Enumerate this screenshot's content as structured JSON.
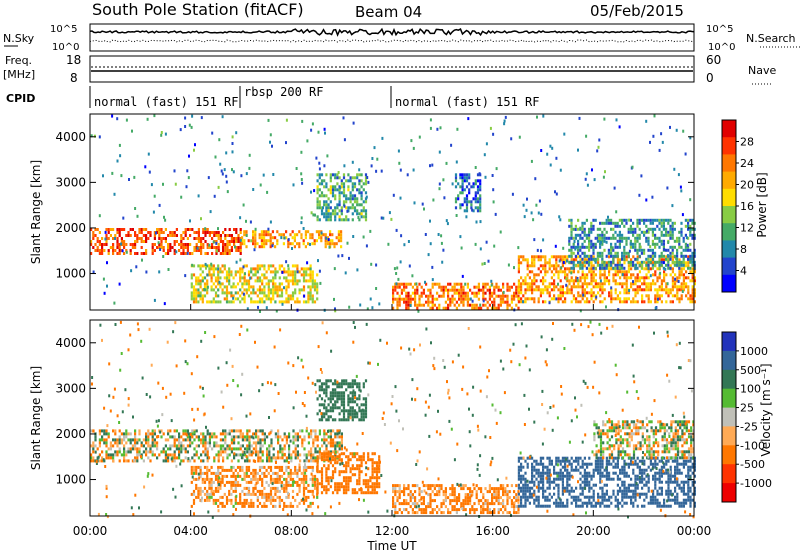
{
  "header": {
    "title": "South Pole Station (fitACF)",
    "beam": "Beam 04",
    "date": "05/Feb/2015"
  },
  "top_panels": {
    "nsky_label": "N.Sky",
    "nsky_tick_top": "10^5",
    "nsky_tick_bottom": "10^0",
    "nsearch_label": "N.Search",
    "freq_label_1": "Freq.",
    "freq_label_2": "[MHz]",
    "freq_ticks": [
      "18",
      "8"
    ],
    "nave_ticks": [
      "60",
      "0"
    ],
    "nave_label": "Nave",
    "cpid_label": "CPID",
    "cpid_modes": [
      {
        "label": "normal (fast) 151 RF",
        "start_hour": 0,
        "end_hour": 6
      },
      {
        "label": "rbsp 200 RF",
        "start_hour": 6,
        "end_hour": 12
      },
      {
        "label": "normal (fast) 151 RF",
        "start_hour": 12,
        "end_hour": 24
      }
    ]
  },
  "colorbars": {
    "power": {
      "label": "Power [dB]",
      "ticks": [
        "28",
        "24",
        "20",
        "16",
        "12",
        "8",
        "4"
      ],
      "colors": [
        "#e00000",
        "#ff3300",
        "#ff7700",
        "#ffaa00",
        "#ffdd00",
        "#88cc44",
        "#44aa66",
        "#2288aa",
        "#2244cc",
        "#0000ff"
      ]
    },
    "velocity": {
      "label": "Velocity [m s⁻¹]",
      "ticks": [
        "1000",
        "500",
        "100",
        "25",
        "-25",
        "-100",
        "-500",
        "-1000"
      ],
      "colors": [
        "#2233bb",
        "#336699",
        "#337755",
        "#55bb33",
        "#c0c0b8",
        "#ffaa55",
        "#ff7700",
        "#ff3300",
        "#ee0000"
      ]
    }
  },
  "chart_data": [
    {
      "type": "heatmap",
      "name": "power",
      "ylabel": "Slant Range [km]",
      "yticks": [
        1000,
        2000,
        3000,
        4000
      ],
      "ylim": [
        200,
        4500
      ],
      "xlim_hours": [
        0,
        24
      ],
      "bands": [
        {
          "t0": 0,
          "t1": 6,
          "r0": 1450,
          "r1": 2000,
          "level": 26
        },
        {
          "t0": 6,
          "t1": 10,
          "r0": 1600,
          "r1": 1950,
          "level": 22
        },
        {
          "t0": 4,
          "t1": 9,
          "r0": 400,
          "r1": 1200,
          "level": 18
        },
        {
          "t0": 12,
          "t1": 17,
          "r0": 250,
          "r1": 800,
          "level": 24
        },
        {
          "t0": 17,
          "t1": 24,
          "r0": 400,
          "r1": 1400,
          "level": 22
        },
        {
          "t0": 19,
          "t1": 24,
          "r0": 1100,
          "r1": 2200,
          "level": 10
        },
        {
          "t0": 9,
          "t1": 11,
          "r0": 2200,
          "r1": 3200,
          "level": 12
        },
        {
          "t0": 14.5,
          "t1": 15.5,
          "r0": 2400,
          "r1": 3200,
          "level": 8
        }
      ]
    },
    {
      "type": "heatmap",
      "name": "velocity",
      "ylabel": "Slant Range [km]",
      "yticks": [
        1000,
        2000,
        3000,
        4000
      ],
      "ylim": [
        200,
        4500
      ],
      "xlim_hours": [
        0,
        24
      ],
      "bands": [
        {
          "t0": 0,
          "t1": 10,
          "r0": 1400,
          "r1": 2100,
          "velocity": 0
        },
        {
          "t0": 4,
          "t1": 9,
          "r0": 400,
          "r1": 1300,
          "velocity": -150
        },
        {
          "t0": 9,
          "t1": 11.5,
          "r0": 700,
          "r1": 1600,
          "velocity": -300
        },
        {
          "t0": 12,
          "t1": 17,
          "r0": 300,
          "r1": 900,
          "velocity": -200
        },
        {
          "t0": 17,
          "t1": 24,
          "r0": 400,
          "r1": 1500,
          "velocity": 700
        },
        {
          "t0": 20,
          "t1": 24,
          "r0": 1500,
          "r1": 2300,
          "velocity": 0
        },
        {
          "t0": 9,
          "t1": 11,
          "r0": 2300,
          "r1": 3200,
          "velocity": 300
        }
      ]
    }
  ],
  "xaxis": {
    "label": "Time UT",
    "ticks": [
      "00:00",
      "04:00",
      "08:00",
      "12:00",
      "16:00",
      "20:00",
      "00:00"
    ]
  }
}
